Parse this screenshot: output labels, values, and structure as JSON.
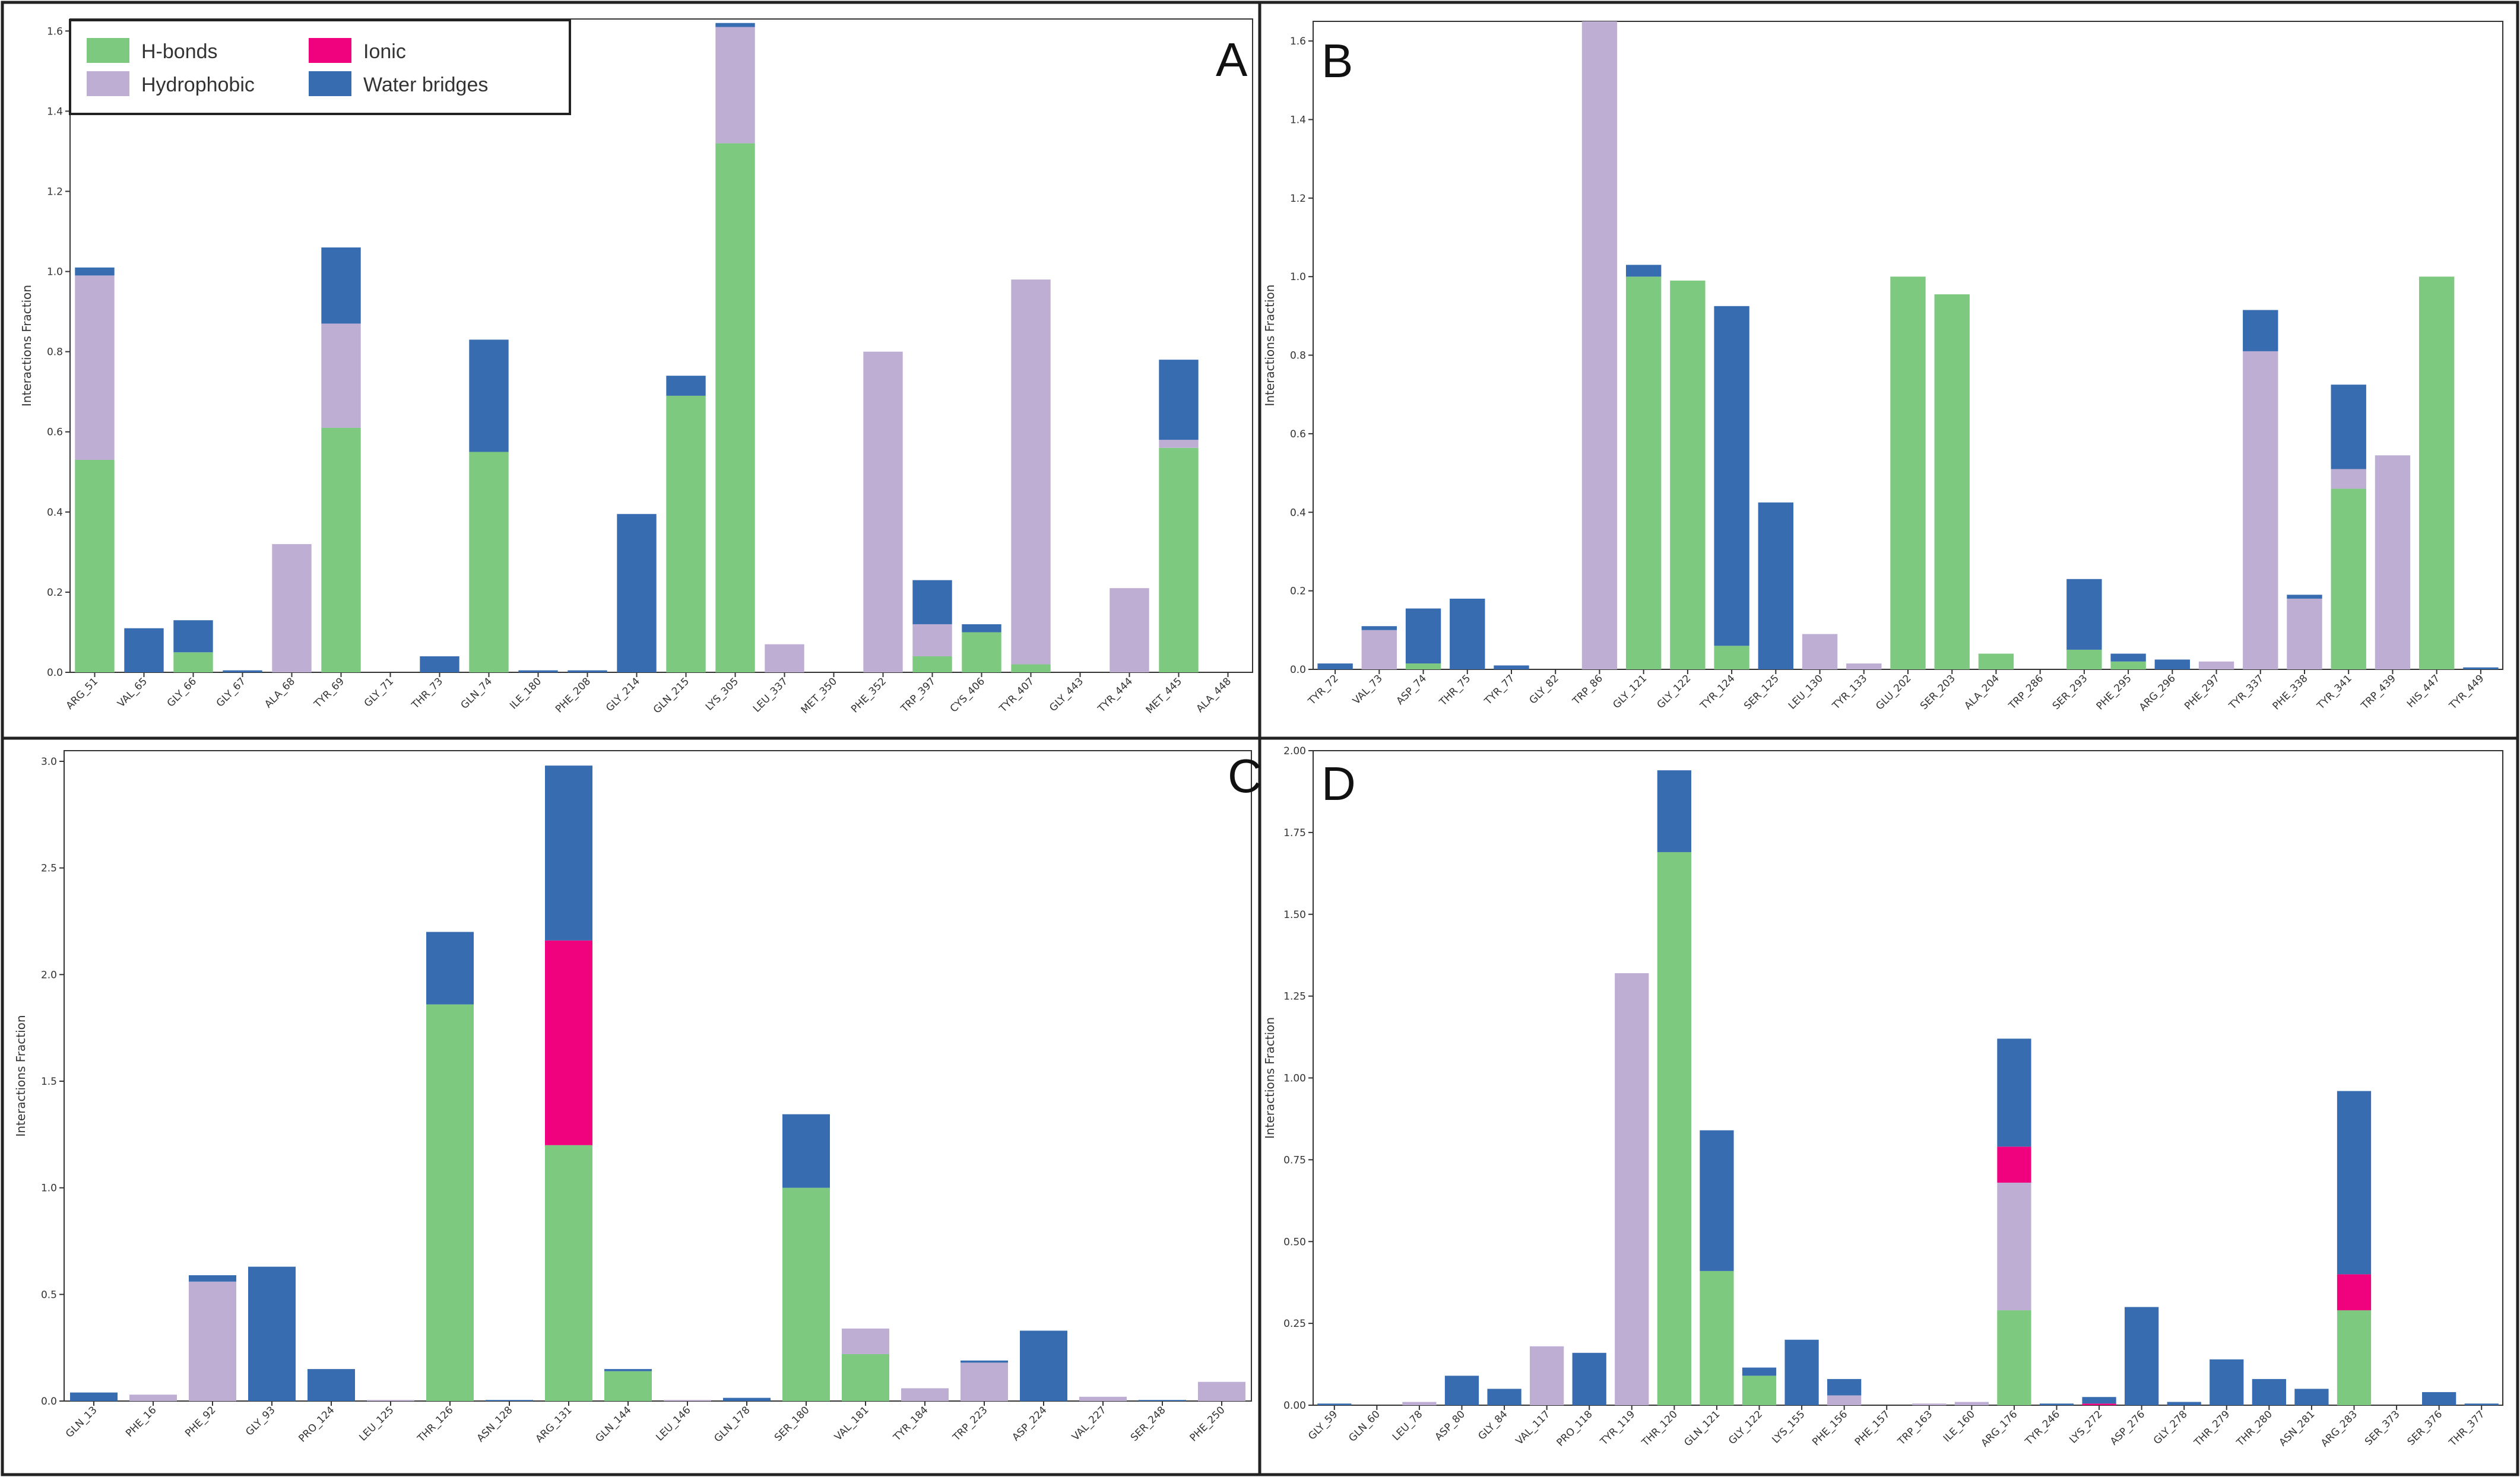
{
  "legend": [
    {
      "key": "hb",
      "label": "H-bonds",
      "color": "#7dc97f"
    },
    {
      "key": "hy",
      "label": "Hydrophobic",
      "color": "#beaed4"
    },
    {
      "key": "io",
      "label": "Ionic",
      "color": "#f0027f"
    },
    {
      "key": "wb",
      "label": "Water bridges",
      "color": "#386cb0"
    }
  ],
  "chart_data": [
    {
      "panel": "A",
      "type": "bar",
      "stacked": true,
      "ylabel": "Interactions Fraction",
      "ylim": [
        0,
        1.63
      ],
      "yticks": [
        "0.0",
        "0.2",
        "0.4",
        "0.6",
        "0.8",
        "1.0",
        "1.2",
        "1.4",
        "1.6"
      ],
      "ytick_values": [
        0,
        0.2,
        0.4,
        0.6,
        0.8,
        1.0,
        1.2,
        1.4,
        1.6
      ],
      "legend_position": "top-left",
      "categories": [
        "ARG_51",
        "VAL_65",
        "GLY_66",
        "GLY_67",
        "ALA_68",
        "TYR_69",
        "GLY_71",
        "THR_73",
        "GLN_74",
        "ILE_180",
        "PHE_208",
        "GLY_214",
        "GLN_215",
        "LYS_305",
        "LEU_337",
        "MET_350",
        "PHE_352",
        "TRP_397",
        "CYS_406",
        "TYR_407",
        "GLY_443",
        "TYR_444",
        "MET_445",
        "ALA_448"
      ],
      "series": [
        {
          "name": "H-bonds",
          "values": [
            0.53,
            0,
            0.05,
            0,
            0,
            0.61,
            0,
            0,
            0.55,
            0,
            0,
            0,
            0.69,
            1.32,
            0,
            0,
            0,
            0.04,
            0.1,
            0.02,
            0,
            0,
            0.56,
            0
          ]
        },
        {
          "name": "Hydrophobic",
          "values": [
            0.46,
            0,
            0,
            0,
            0.32,
            0.26,
            0,
            0,
            0,
            0,
            0,
            0,
            0,
            0.29,
            0.07,
            0,
            0.8,
            0.08,
            0,
            0.96,
            0,
            0.21,
            0.02,
            0
          ]
        },
        {
          "name": "Ionic",
          "values": [
            0,
            0,
            0,
            0,
            0,
            0,
            0,
            0,
            0,
            0,
            0,
            0,
            0,
            0,
            0,
            0,
            0,
            0,
            0,
            0,
            0,
            0,
            0,
            0
          ]
        },
        {
          "name": "Water bridges",
          "values": [
            0.02,
            0.11,
            0.08,
            0.005,
            0,
            0.19,
            0,
            0.04,
            0.28,
            0.005,
            0.005,
            0.395,
            0.05,
            0.01,
            0,
            0,
            0,
            0.11,
            0.02,
            0,
            0,
            0,
            0.2,
            0
          ]
        }
      ]
    },
    {
      "panel": "B",
      "type": "bar",
      "stacked": true,
      "ylabel": "Interactions Fraction",
      "ylim": [
        0,
        1.65
      ],
      "yticks": [
        "0.0",
        "0.2",
        "0.4",
        "0.6",
        "0.8",
        "1.0",
        "1.2",
        "1.4",
        "1.6"
      ],
      "ytick_values": [
        0,
        0.2,
        0.4,
        0.6,
        0.8,
        1.0,
        1.2,
        1.4,
        1.6
      ],
      "categories": [
        "TYR_72",
        "VAL_73",
        "ASP_74",
        "THR_75",
        "TYR_77",
        "GLY_82",
        "TRP_86",
        "GLY_121",
        "GLY_122",
        "TYR_124",
        "SER_125",
        "LEU_130",
        "TYR_133",
        "GLU_202",
        "SER_203",
        "ALA_204",
        "TRP_286",
        "SER_293",
        "PHE_295",
        "ARG_296",
        "PHE_297",
        "TYR_337",
        "PHE_338",
        "TYR_341",
        "TRP_439",
        "HIS_447",
        "TYR_449"
      ],
      "series": [
        {
          "name": "H-bonds",
          "values": [
            0,
            0,
            0.015,
            0,
            0,
            0,
            0,
            1.0,
            0.99,
            0.06,
            0,
            0,
            0,
            1.0,
            0.955,
            0.04,
            0,
            0.05,
            0.02,
            0,
            0,
            0,
            0,
            0.46,
            0,
            1.0,
            0
          ]
        },
        {
          "name": "Hydrophobic",
          "values": [
            0,
            0.1,
            0,
            0,
            0,
            0,
            1.65,
            0,
            0,
            0,
            0,
            0.09,
            0.015,
            0,
            0,
            0,
            0,
            0,
            0,
            0,
            0.02,
            0.81,
            0.18,
            0.05,
            0.545,
            0,
            0
          ]
        },
        {
          "name": "Ionic",
          "values": [
            0,
            0,
            0,
            0,
            0,
            0,
            0,
            0,
            0,
            0,
            0,
            0,
            0,
            0,
            0,
            0,
            0,
            0,
            0,
            0,
            0,
            0,
            0,
            0,
            0,
            0,
            0
          ]
        },
        {
          "name": "Water bridges",
          "values": [
            0.015,
            0.01,
            0.14,
            0.18,
            0.01,
            0,
            0,
            0.03,
            0,
            0.865,
            0.425,
            0,
            0,
            0,
            0,
            0,
            0,
            0.18,
            0.02,
            0.025,
            0,
            0.105,
            0.01,
            0.215,
            0,
            0,
            0.005
          ]
        }
      ]
    },
    {
      "panel": "C",
      "type": "bar",
      "stacked": true,
      "ylabel": "Interactions Fraction",
      "ylim": [
        0,
        3.05
      ],
      "yticks": [
        "0.0",
        "0.5",
        "1.0",
        "1.5",
        "2.0",
        "2.5",
        "3.0"
      ],
      "ytick_values": [
        0,
        0.5,
        1.0,
        1.5,
        2.0,
        2.5,
        3.0
      ],
      "categories": [
        "GLN_13",
        "PHE_16",
        "PHE_92",
        "GLY_93",
        "PRO_124",
        "LEU_125",
        "THR_126",
        "ASN_128",
        "ARG_131",
        "GLN_144",
        "LEU_146",
        "GLN_178",
        "SER_180",
        "VAL_181",
        "TYR_184",
        "TRP_223",
        "ASP_224",
        "VAL_227",
        "SER_248",
        "PHE_250"
      ],
      "series": [
        {
          "name": "H-bonds",
          "values": [
            0,
            0,
            0,
            0,
            0,
            0,
            1.86,
            0,
            1.2,
            0.14,
            0,
            0,
            1.0,
            0.22,
            0,
            0,
            0,
            0,
            0,
            0
          ]
        },
        {
          "name": "Hydrophobic",
          "values": [
            0,
            0.03,
            0.56,
            0,
            0,
            0.005,
            0,
            0,
            0,
            0,
            0.005,
            0,
            0,
            0.12,
            0.06,
            0.18,
            0,
            0.02,
            0,
            0.09
          ]
        },
        {
          "name": "Ionic",
          "values": [
            0,
            0,
            0,
            0,
            0,
            0,
            0,
            0,
            0.96,
            0,
            0,
            0,
            0,
            0,
            0,
            0,
            0,
            0,
            0,
            0
          ]
        },
        {
          "name": "Water bridges",
          "values": [
            0.04,
            0,
            0.03,
            0.63,
            0.15,
            0,
            0.34,
            0.005,
            0.82,
            0.01,
            0,
            0.015,
            0.345,
            0,
            0,
            0.01,
            0.33,
            0,
            0.005,
            0
          ]
        }
      ]
    },
    {
      "panel": "D",
      "type": "bar",
      "stacked": true,
      "ylabel": "Interactions Fraction",
      "ylim": [
        0,
        2.0
      ],
      "yticks": [
        "0.00",
        "0.25",
        "0.50",
        "0.75",
        "1.00",
        "1.25",
        "1.50",
        "1.75",
        "2.00"
      ],
      "ytick_values": [
        0,
        0.25,
        0.5,
        0.75,
        1.0,
        1.25,
        1.5,
        1.75,
        2.0
      ],
      "categories": [
        "GLY_59",
        "GLN_60",
        "LEU_78",
        "ASP_80",
        "GLY_84",
        "VAL_117",
        "PRO_118",
        "TYR_119",
        "THR_120",
        "GLN_121",
        "GLY_122",
        "LYS_155",
        "PHE_156",
        "PHE_157",
        "TRP_163",
        "ILE_160",
        "ARG_176",
        "TYR_246",
        "LYS_272",
        "ASP_276",
        "GLY_278",
        "THR_279",
        "THR_280",
        "ASN_281",
        "ARG_283",
        "SER_373",
        "SER_376",
        "THR_377"
      ],
      "series": [
        {
          "name": "H-bonds",
          "values": [
            0,
            0,
            0,
            0,
            0,
            0,
            0,
            0,
            1.69,
            0.41,
            0.09,
            0,
            0,
            0,
            0,
            0,
            0.29,
            0,
            0,
            0,
            0,
            0,
            0,
            0,
            0.29,
            0,
            0,
            0
          ]
        },
        {
          "name": "Hydrophobic",
          "values": [
            0,
            0,
            0.01,
            0,
            0,
            0.18,
            0,
            1.32,
            0,
            0,
            0,
            0,
            0.03,
            0,
            0.005,
            0.01,
            0.39,
            0,
            0,
            0,
            0,
            0,
            0,
            0,
            0,
            0,
            0,
            0
          ]
        },
        {
          "name": "Ionic",
          "values": [
            0,
            0,
            0,
            0,
            0,
            0,
            0,
            0,
            0,
            0,
            0,
            0,
            0,
            0,
            0,
            0,
            0.11,
            0,
            0.005,
            0,
            0,
            0,
            0,
            0,
            0.11,
            0,
            0,
            0
          ]
        },
        {
          "name": "Water bridges",
          "values": [
            0.005,
            0,
            0,
            0.09,
            0.05,
            0,
            0.16,
            0,
            0.25,
            0.43,
            0.025,
            0.2,
            0.05,
            0,
            0,
            0,
            0.33,
            0.005,
            0.02,
            0.3,
            0.01,
            0.14,
            0.08,
            0.05,
            0.56,
            0,
            0.04,
            0.005
          ]
        }
      ]
    }
  ]
}
